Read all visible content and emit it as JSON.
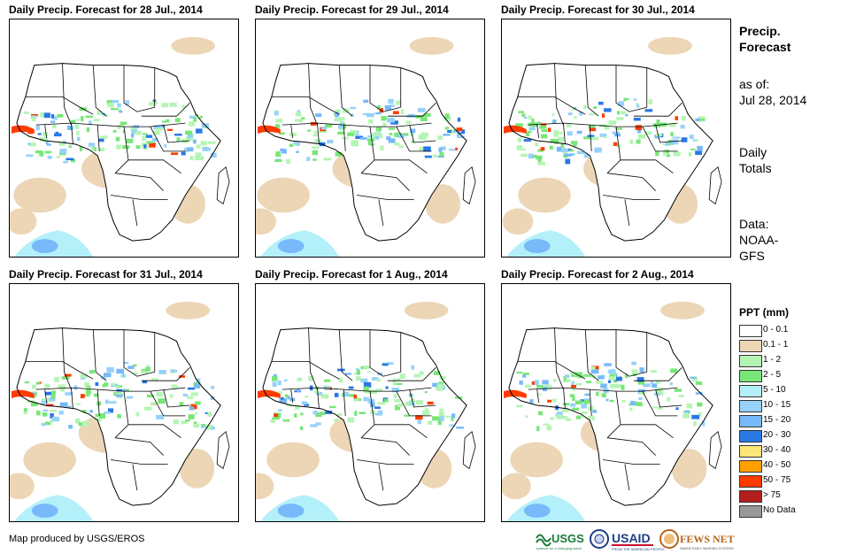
{
  "panels": [
    {
      "title": "Daily Precip. Forecast for 28 Jul., 2014"
    },
    {
      "title": "Daily Precip. Forecast for 29 Jul., 2014"
    },
    {
      "title": "Daily Precip. Forecast for 30 Jul., 2014"
    },
    {
      "title": "Daily Precip. Forecast for 31 Jul., 2014"
    },
    {
      "title": "Daily Precip. Forecast for 1 Aug., 2014"
    },
    {
      "title": "Daily Precip. Forecast for 2 Aug., 2014"
    }
  ],
  "sidebar": {
    "heading_line1": "Precip.",
    "heading_line2": "Forecast",
    "asof_line1": "as of:",
    "asof_line2": "Jul 28, 2014",
    "totals_line1": "Daily",
    "totals_line2": "Totals",
    "data_line1": "Data:",
    "data_line2": "NOAA-",
    "data_line3": "GFS"
  },
  "legend": {
    "title": "PPT (mm)",
    "items": [
      {
        "label": "0 - 0.1",
        "color": "#ffffff"
      },
      {
        "label": "0.1 - 1",
        "color": "#ecd6b6"
      },
      {
        "label": "1 - 2",
        "color": "#b4f5b4"
      },
      {
        "label": "2 - 5",
        "color": "#78e678"
      },
      {
        "label": "5 - 10",
        "color": "#b4f0fa"
      },
      {
        "label": "10 - 15",
        "color": "#96d2fa"
      },
      {
        "label": "15 - 20",
        "color": "#78b9fa"
      },
      {
        "label": "20 - 30",
        "color": "#2878e6"
      },
      {
        "label": "30 - 40",
        "color": "#ffe678"
      },
      {
        "label": "40 - 50",
        "color": "#ffa000"
      },
      {
        "label": "50 - 75",
        "color": "#ff3c00"
      },
      {
        "label": "> 75",
        "color": "#b41e1e"
      },
      {
        "label": "No Data",
        "color": "#999999"
      }
    ]
  },
  "footer": {
    "credit": "Map produced by USGS/EROS",
    "logo_usgs": "USGS",
    "logo_usaid": "USAID",
    "logo_fewsnet": "FEWS NET"
  }
}
